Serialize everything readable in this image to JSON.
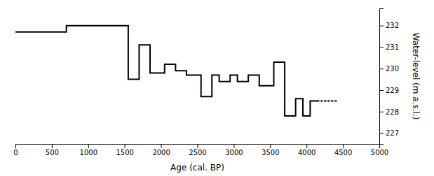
{
  "chart_data": {
    "type": "line",
    "xlabel": "Age (cal. BP)",
    "ylabel": "Water-level (m a.s.l.)",
    "xlim": [
      0,
      5000
    ],
    "ylim": [
      226.5,
      232.8
    ],
    "xticks": [
      0,
      500,
      1000,
      1500,
      2000,
      2500,
      3000,
      3500,
      4000,
      4500,
      5000
    ],
    "yticks": [
      227,
      228,
      229,
      230,
      231,
      232
    ],
    "grid": false,
    "series": [
      {
        "color": "#000000",
        "line_style": "solid",
        "x": [
          0,
          700,
          700,
          1550,
          1550,
          1700,
          1700,
          1850,
          1850,
          2050,
          2050,
          2200,
          2200,
          2350,
          2350,
          2550,
          2550,
          2700,
          2700,
          2800,
          2800,
          2950,
          2950,
          3050,
          3050,
          3200,
          3200,
          3350,
          3350,
          3550,
          3550,
          3700,
          3700,
          3850,
          3850,
          3950,
          3950,
          4050,
          4050,
          4150
        ],
        "values": [
          231.7,
          231.7,
          232.0,
          232.0,
          229.5,
          229.5,
          231.1,
          231.1,
          229.8,
          229.8,
          230.2,
          230.2,
          229.9,
          229.9,
          229.7,
          229.7,
          228.7,
          228.7,
          229.7,
          229.7,
          229.4,
          229.4,
          229.7,
          229.7,
          229.4,
          229.4,
          229.7,
          229.7,
          229.2,
          229.2,
          230.3,
          230.3,
          227.8,
          227.8,
          228.6,
          228.6,
          227.8,
          227.8,
          228.5,
          228.5
        ]
      },
      {
        "color": "#000000",
        "line_style": "dotted",
        "x": [
          4150,
          4430
        ],
        "values": [
          228.5,
          228.5
        ]
      }
    ]
  }
}
